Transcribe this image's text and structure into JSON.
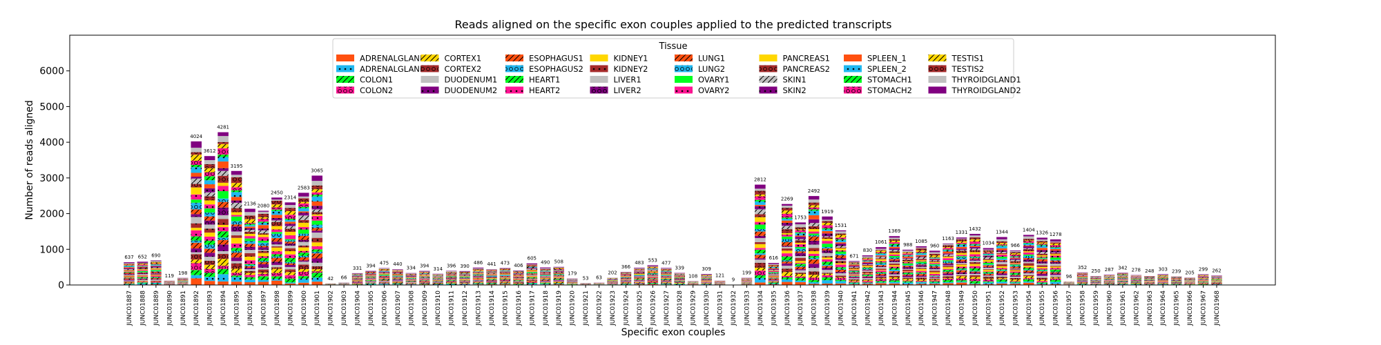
{
  "chart_data": {
    "type": "bar",
    "stacked": true,
    "title": "Reads aligned on the specific exon couples applied to the predicted transcripts",
    "xlabel": "Specific exon couples",
    "ylabel": "Number of reads aligned",
    "ylim": [
      0,
      7000
    ],
    "yticks": [
      0,
      1000,
      2000,
      3000,
      4000,
      5000,
      6000
    ],
    "grid": false,
    "legend": {
      "title": "Tissue",
      "placement": "top-center",
      "columns": 8
    },
    "categories": [
      "JUNC01887",
      "JUNC01888",
      "JUNC01889",
      "JUNC01890",
      "JUNC01891",
      "JUNC01892",
      "JUNC01893",
      "JUNC01894",
      "JUNC01895",
      "JUNC01896",
      "JUNC01897",
      "JUNC01898",
      "JUNC01899",
      "JUNC01900",
      "JUNC01901",
      "JUNC01902",
      "JUNC01903",
      "JUNC01904",
      "JUNC01905",
      "JUNC01906",
      "JUNC01907",
      "JUNC01908",
      "JUNC01909",
      "JUNC01910",
      "JUNC01911",
      "JUNC01912",
      "JUNC01913",
      "JUNC01914",
      "JUNC01915",
      "JUNC01916",
      "JUNC01917",
      "JUNC01918",
      "JUNC01919",
      "JUNC01920",
      "JUNC01921",
      "JUNC01922",
      "JUNC01923",
      "JUNC01924",
      "JUNC01925",
      "JUNC01926",
      "JUNC01927",
      "JUNC01928",
      "JUNC01929",
      "JUNC01930",
      "JUNC01931",
      "JUNC01932",
      "JUNC01933",
      "JUNC01934",
      "JUNC01935",
      "JUNC01936",
      "JUNC01937",
      "JUNC01938",
      "JUNC01939",
      "JUNC01940",
      "JUNC01941",
      "JUNC01942",
      "JUNC01943",
      "JUNC01944",
      "JUNC01945",
      "JUNC01946",
      "JUNC01947",
      "JUNC01948",
      "JUNC01949",
      "JUNC01950",
      "JUNC01951",
      "JUNC01952",
      "JUNC01953",
      "JUNC01954",
      "JUNC01955",
      "JUNC01956",
      "JUNC01957",
      "JUNC01958",
      "JUNC01959",
      "JUNC01960",
      "JUNC01961",
      "JUNC01962",
      "JUNC01963",
      "JUNC01964",
      "JUNC01965",
      "JUNC01966",
      "JUNC01967",
      "JUNC01968"
    ],
    "totals": [
      637,
      652,
      690,
      119,
      198,
      4024,
      3612,
      4281,
      3195,
      2136,
      2080,
      2450,
      2314,
      2583,
      3065,
      42,
      66,
      331,
      394,
      475,
      440,
      334,
      394,
      314,
      396,
      390,
      486,
      441,
      473,
      406,
      605,
      490,
      508,
      179,
      53,
      63,
      202,
      366,
      483,
      553,
      477,
      339,
      108,
      309,
      121,
      9,
      199,
      2812,
      616,
      2269,
      1753,
      2492,
      1919,
      1531,
      671,
      830,
      1061,
      1369,
      988,
      1085,
      960,
      1163,
      1331,
      1432,
      1034,
      1344,
      966,
      1404,
      1326,
      1278,
      96,
      352,
      250,
      287,
      342,
      278,
      248,
      303,
      239,
      205,
      299,
      262
    ],
    "data_labels": [
      "637",
      "652",
      "690",
      "119",
      "198",
      "4024",
      "3612",
      "4281",
      "3195",
      "2136",
      "2080",
      "2450",
      "2314",
      "2583",
      "3065",
      "42",
      "66",
      "331",
      "394",
      "475",
      "440",
      "334",
      "394",
      "314",
      "396",
      "390",
      "486",
      "441",
      "473",
      "406",
      "605",
      "490",
      "508",
      "179",
      "53",
      "63",
      "202",
      "366",
      "483",
      "553",
      "477",
      "339",
      "108",
      "309",
      "121",
      "9",
      "199",
      "2812",
      "616",
      "2269",
      "1753",
      "2492",
      "1919",
      "1531",
      "671",
      "830",
      "1061",
      "1369",
      "988",
      "1085",
      "960",
      "1163",
      "1331",
      "1432",
      "1034",
      "1344",
      "966",
      "1404",
      "1326",
      "1278",
      "96",
      "352",
      "250",
      "287",
      "342",
      "278",
      "248",
      "303",
      "239",
      "205",
      "299",
      "262"
    ],
    "series": [
      {
        "name": "ADRENALGLAND1",
        "color": "#ff5010",
        "pattern": "none"
      },
      {
        "name": "ADRENALGLAND2",
        "color": "#20b8f0",
        "pattern": "dot"
      },
      {
        "name": "COLON1",
        "color": "#00ff20",
        "pattern": "slash"
      },
      {
        "name": "COLON2",
        "color": "#ff1493",
        "pattern": "circle"
      },
      {
        "name": "CORTEX1",
        "color": "#ffd700",
        "pattern": "slash"
      },
      {
        "name": "CORTEX2",
        "color": "#a52a2a",
        "pattern": "circle"
      },
      {
        "name": "DUODENUM1",
        "color": "#c0c0c0",
        "pattern": "none"
      },
      {
        "name": "DUODENUM2",
        "color": "#800080",
        "pattern": "dot"
      },
      {
        "name": "ESOPHAGUS1",
        "color": "#ff5010",
        "pattern": "slash"
      },
      {
        "name": "ESOPHAGUS2",
        "color": "#20b8f0",
        "pattern": "circle"
      },
      {
        "name": "HEART1",
        "color": "#00ff20",
        "pattern": "slash"
      },
      {
        "name": "HEART2",
        "color": "#ff1493",
        "pattern": "dot"
      },
      {
        "name": "KIDNEY1",
        "color": "#ffd700",
        "pattern": "none"
      },
      {
        "name": "KIDNEY2",
        "color": "#a52a2a",
        "pattern": "dot"
      },
      {
        "name": "LIVER1",
        "color": "#c0c0c0",
        "pattern": "none"
      },
      {
        "name": "LIVER2",
        "color": "#800080",
        "pattern": "circle"
      },
      {
        "name": "LUNG1",
        "color": "#ff5010",
        "pattern": "slash"
      },
      {
        "name": "LUNG2",
        "color": "#20b8f0",
        "pattern": "circle"
      },
      {
        "name": "OVARY1",
        "color": "#00ff20",
        "pattern": "none"
      },
      {
        "name": "OVARY2",
        "color": "#ff1493",
        "pattern": "dot"
      },
      {
        "name": "PANCREAS1",
        "color": "#ffd700",
        "pattern": "none"
      },
      {
        "name": "PANCREAS2",
        "color": "#a52a2a",
        "pattern": "circle"
      },
      {
        "name": "SKIN1",
        "color": "#c0c0c0",
        "pattern": "slash"
      },
      {
        "name": "SKIN2",
        "color": "#800080",
        "pattern": "dot"
      },
      {
        "name": "SPLEEN_1",
        "color": "#ff5010",
        "pattern": "none"
      },
      {
        "name": "SPLEEN_2",
        "color": "#20b8f0",
        "pattern": "dot"
      },
      {
        "name": "STOMACH1",
        "color": "#00ff20",
        "pattern": "slash"
      },
      {
        "name": "STOMACH2",
        "color": "#ff1493",
        "pattern": "circle"
      },
      {
        "name": "TESTIS1",
        "color": "#ffd700",
        "pattern": "slash"
      },
      {
        "name": "TESTIS2",
        "color": "#a52a2a",
        "pattern": "circle"
      },
      {
        "name": "THYROIDGLAND1",
        "color": "#c0c0c0",
        "pattern": "none"
      },
      {
        "name": "THYROIDGLAND2",
        "color": "#800080",
        "pattern": "none"
      }
    ]
  }
}
